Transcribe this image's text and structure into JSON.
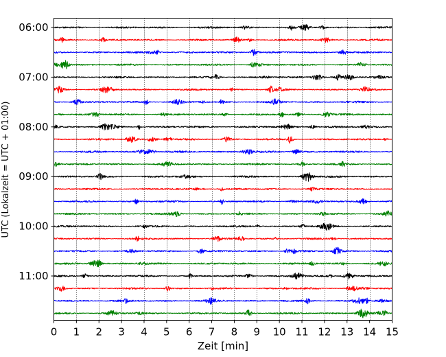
{
  "chart_data": {
    "type": "line",
    "title": "",
    "xlabel": "Zeit  [min]",
    "ylabel": "UTC (Lokalzeit = UTC + 01:00)",
    "x_ticks": [
      0,
      1,
      2,
      3,
      4,
      5,
      6,
      7,
      8,
      9,
      10,
      11,
      12,
      13,
      14,
      15
    ],
    "x_tick_labels": [
      "0",
      "1",
      "2",
      "3",
      "4",
      "5",
      "6",
      "7",
      "8",
      "9",
      "10",
      "11",
      "12",
      "13",
      "14",
      "15"
    ],
    "xlim": [
      0,
      15
    ],
    "y_tick_labels": [
      "06:00",
      "07:00",
      "08:00",
      "09:00",
      "10:00",
      "11:00"
    ],
    "grid": {
      "x": true,
      "x_style": "dotted",
      "y": false
    },
    "trace_colors": [
      "#000000",
      "#ff0000",
      "#0000ff",
      "#008000"
    ],
    "rows": [
      {
        "start": "06:00",
        "color": "#000000"
      },
      {
        "start": "06:15",
        "color": "#ff0000"
      },
      {
        "start": "06:30",
        "color": "#0000ff"
      },
      {
        "start": "06:45",
        "color": "#008000"
      },
      {
        "start": "07:00",
        "color": "#000000"
      },
      {
        "start": "07:15",
        "color": "#ff0000"
      },
      {
        "start": "07:30",
        "color": "#0000ff"
      },
      {
        "start": "07:45",
        "color": "#008000"
      },
      {
        "start": "08:00",
        "color": "#000000"
      },
      {
        "start": "08:15",
        "color": "#ff0000"
      },
      {
        "start": "08:30",
        "color": "#0000ff"
      },
      {
        "start": "08:45",
        "color": "#008000"
      },
      {
        "start": "09:00",
        "color": "#000000"
      },
      {
        "start": "09:15",
        "color": "#ff0000"
      },
      {
        "start": "09:30",
        "color": "#0000ff"
      },
      {
        "start": "09:45",
        "color": "#008000"
      },
      {
        "start": "10:00",
        "color": "#000000"
      },
      {
        "start": "10:15",
        "color": "#ff0000"
      },
      {
        "start": "10:30",
        "color": "#0000ff"
      },
      {
        "start": "10:45",
        "color": "#008000"
      },
      {
        "start": "11:00",
        "color": "#000000"
      },
      {
        "start": "11:15",
        "color": "#ff0000"
      },
      {
        "start": "11:30",
        "color": "#0000ff"
      },
      {
        "start": "11:45",
        "color": "#008000"
      }
    ]
  }
}
